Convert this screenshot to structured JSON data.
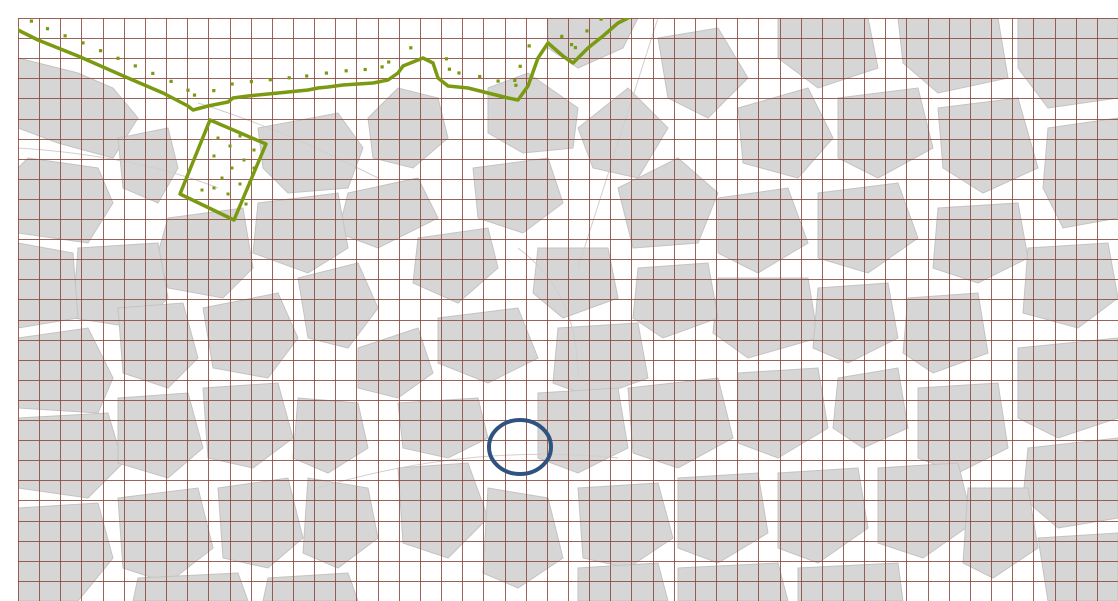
{
  "map": {
    "basemap": "city-blocks",
    "grid": {
      "visible": true,
      "columns": 52,
      "rows": 29,
      "color": "#8b4a3b"
    },
    "colors": {
      "background": "#ffffff",
      "blocks": "#d6d6d6",
      "boundary": "#7a9a12",
      "marker": "#2f527e"
    },
    "overlays": [
      {
        "kind": "boundary-line",
        "style": "solid-with-dotted-offset",
        "color": "#7a9a12"
      },
      {
        "kind": "boundary-polygon",
        "style": "solid-with-dots",
        "color": "#7a9a12"
      },
      {
        "kind": "location-marker",
        "shape": "circle",
        "color": "#2f527e"
      }
    ]
  }
}
